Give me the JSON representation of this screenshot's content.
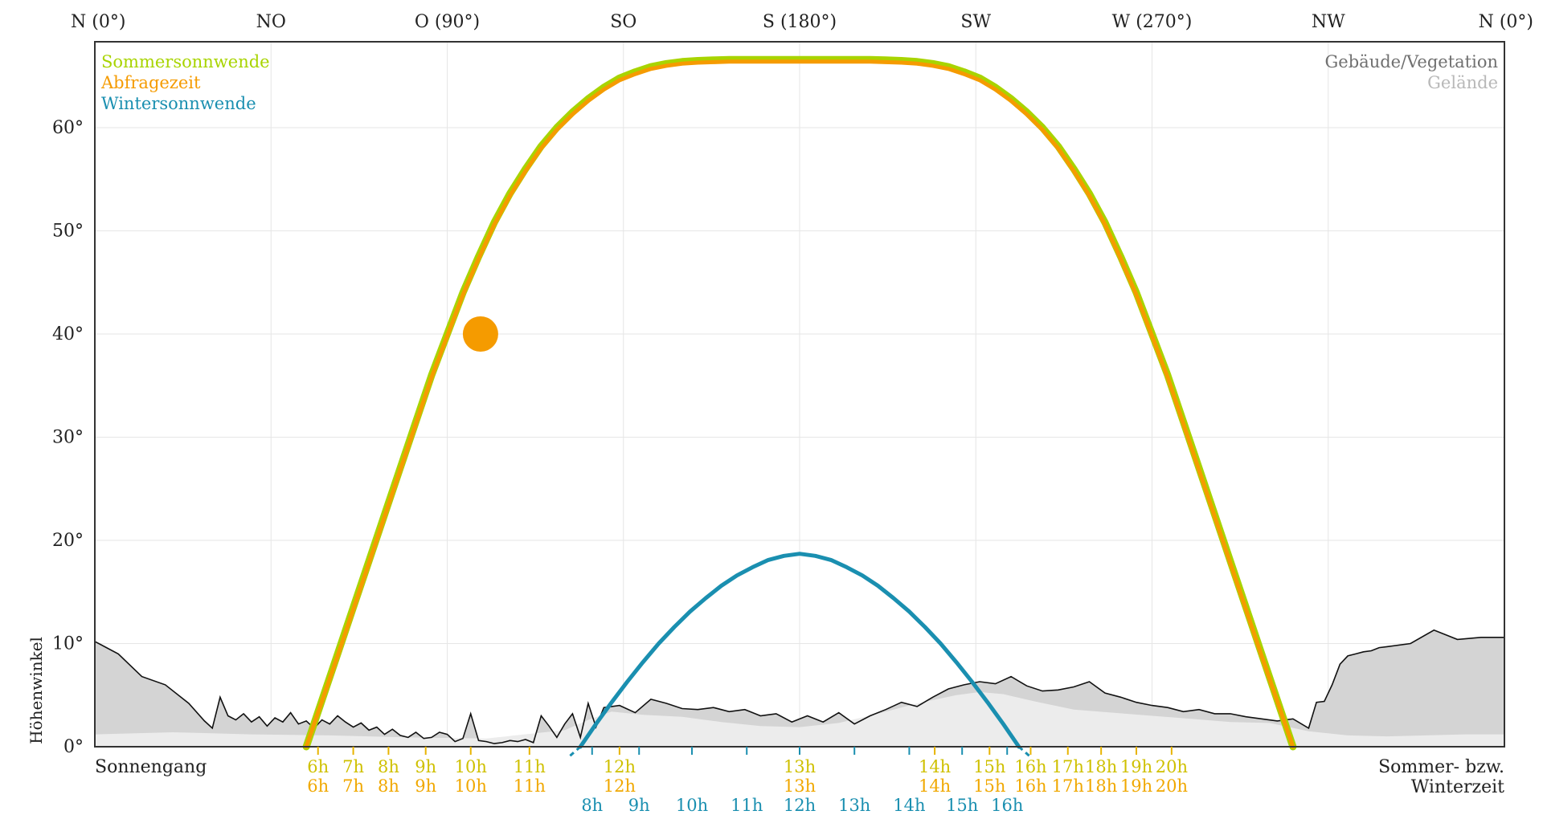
{
  "chart_data": {
    "type": "line",
    "ylabel": "Höhenwinkel",
    "xlim": [
      0,
      360
    ],
    "ylim": [
      0,
      68
    ],
    "grid": true,
    "direction_labels": [
      {
        "label": "N (0°)",
        "az": 0
      },
      {
        "label": "NO",
        "az": 45
      },
      {
        "label": "O (90°)",
        "az": 90
      },
      {
        "label": "SO",
        "az": 135
      },
      {
        "label": "S (180°)",
        "az": 180
      },
      {
        "label": "SW",
        "az": 225
      },
      {
        "label": "W (270°)",
        "az": 270
      },
      {
        "label": "NW",
        "az": 315
      },
      {
        "label": "N (0°)",
        "az": 360
      }
    ],
    "y_ticks": [
      {
        "label": "0°",
        "value": 0
      },
      {
        "label": "10°",
        "value": 10
      },
      {
        "label": "20°",
        "value": 20
      },
      {
        "label": "30°",
        "value": 30
      },
      {
        "label": "40°",
        "value": 40
      },
      {
        "label": "50°",
        "value": 50
      },
      {
        "label": "60°",
        "value": 60
      }
    ],
    "legend_left": [
      {
        "name": "Sommersonnwende",
        "color": "#a8d400"
      },
      {
        "name": "Abfragezeit",
        "color": "#f59b00"
      },
      {
        "name": "Wintersonnwende",
        "color": "#1a8fb0"
      }
    ],
    "legend_right": [
      {
        "name": "Gebäude/Vegetation",
        "color": "#707070"
      },
      {
        "name": "Gelände",
        "color": "#b8b8b8"
      }
    ],
    "series": [
      {
        "name": "Sommersonnwende",
        "color": "#a8d400",
        "x": [
          54,
          58,
          62,
          66,
          70,
          74,
          78,
          82,
          86,
          90,
          94,
          98,
          102,
          106,
          110,
          114,
          118,
          122,
          126,
          130,
          134,
          138,
          142,
          146,
          150,
          154,
          158,
          162,
          166,
          170,
          174,
          178,
          180,
          182,
          186,
          190,
          194,
          198,
          202,
          206,
          210,
          214,
          218,
          222,
          226,
          230,
          234,
          238,
          242,
          246,
          250,
          254,
          258,
          262,
          266,
          270,
          274,
          278,
          282,
          286,
          290,
          294,
          298,
          302,
          306
        ],
        "y": [
          0,
          4.5,
          9,
          13.5,
          18,
          22.5,
          27,
          31.5,
          36,
          40,
          44,
          47.5,
          50.8,
          53.6,
          56.0,
          58.2,
          60.0,
          61.5,
          62.8,
          63.9,
          64.8,
          65.4,
          65.9,
          66.2,
          66.4,
          66.5,
          66.55,
          66.6,
          66.6,
          66.6,
          66.6,
          66.6,
          66.6,
          66.6,
          66.6,
          66.6,
          66.6,
          66.6,
          66.55,
          66.5,
          66.4,
          66.2,
          65.9,
          65.4,
          64.8,
          63.9,
          62.8,
          61.5,
          60.0,
          58.2,
          56.0,
          53.6,
          50.8,
          47.5,
          44,
          40,
          36,
          31.5,
          27,
          22.5,
          18,
          13.5,
          9,
          4.5,
          0
        ]
      },
      {
        "name": "Abfragezeit",
        "color": "#f59b00",
        "x": [
          54,
          58,
          62,
          66,
          70,
          74,
          78,
          82,
          86,
          90,
          94,
          98,
          102,
          106,
          110,
          114,
          118,
          122,
          126,
          130,
          134,
          138,
          142,
          146,
          150,
          154,
          158,
          162,
          166,
          170,
          174,
          178,
          180,
          182,
          186,
          190,
          194,
          198,
          202,
          206,
          210,
          214,
          218,
          222,
          226,
          230,
          234,
          238,
          242,
          246,
          250,
          254,
          258,
          262,
          266,
          270,
          274,
          278,
          282,
          286,
          290,
          294,
          298,
          302,
          306
        ],
        "y": [
          0,
          4.4,
          8.8,
          13.3,
          17.8,
          22.3,
          26.8,
          31.3,
          35.8,
          39.8,
          43.8,
          47.3,
          50.6,
          53.4,
          55.8,
          58.0,
          59.8,
          61.3,
          62.6,
          63.7,
          64.6,
          65.2,
          65.7,
          66.0,
          66.2,
          66.3,
          66.35,
          66.4,
          66.4,
          66.4,
          66.4,
          66.4,
          66.4,
          66.4,
          66.4,
          66.4,
          66.4,
          66.4,
          66.35,
          66.3,
          66.2,
          66.0,
          65.7,
          65.2,
          64.6,
          63.7,
          62.6,
          61.3,
          59.8,
          58.0,
          55.8,
          53.4,
          50.6,
          47.3,
          43.8,
          39.8,
          35.8,
          31.3,
          26.8,
          22.3,
          17.8,
          13.3,
          8.8,
          4.4,
          0
        ]
      },
      {
        "name": "Wintersonnwende",
        "color": "#1a8fb0",
        "x": [
          124,
          128,
          132,
          136,
          140,
          144,
          148,
          152,
          156,
          160,
          164,
          168,
          172,
          176,
          180,
          184,
          188,
          192,
          196,
          200,
          204,
          208,
          212,
          216,
          220,
          224,
          228,
          232,
          236
        ],
        "y": [
          0,
          2.2,
          4.3,
          6.3,
          8.2,
          10.0,
          11.6,
          13.1,
          14.4,
          15.6,
          16.6,
          17.4,
          18.1,
          18.5,
          18.7,
          18.5,
          18.1,
          17.4,
          16.6,
          15.6,
          14.4,
          13.1,
          11.6,
          10.0,
          8.2,
          6.3,
          4.3,
          2.2,
          0
        ]
      }
    ],
    "query_point": {
      "az": 98.5,
      "alt": 40,
      "color": "#f59b00"
    },
    "horizon_buildings": {
      "x": [
        0,
        6,
        12,
        18,
        24,
        28,
        30,
        32,
        34,
        36,
        38,
        40,
        42,
        44,
        46,
        48,
        50,
        52,
        54,
        56,
        58,
        60,
        62,
        64,
        66,
        68,
        70,
        72,
        74,
        76,
        78,
        80,
        82,
        84,
        86,
        88,
        90,
        92,
        94,
        96,
        98,
        100,
        102,
        104,
        106,
        108,
        110,
        112,
        114,
        116,
        118,
        120,
        122,
        124,
        126,
        128,
        130,
        134,
        138,
        142,
        146,
        150,
        154,
        158,
        162,
        166,
        170,
        174,
        178,
        182,
        186,
        190,
        194,
        198,
        202,
        206,
        210,
        214,
        218,
        222,
        226,
        230,
        234,
        238,
        242,
        246,
        250,
        254,
        258,
        262,
        266,
        270,
        274,
        278,
        282,
        286,
        290,
        294,
        298,
        302,
        306,
        310,
        312,
        314,
        316,
        318,
        320,
        322,
        324,
        326,
        328,
        330,
        336,
        342,
        348,
        354,
        360
      ],
      "y": [
        10.2,
        9.0,
        6.8,
        6.0,
        4.2,
        2.5,
        1.8,
        4.8,
        3.0,
        2.6,
        3.2,
        2.4,
        2.9,
        2.0,
        2.8,
        2.4,
        3.3,
        2.2,
        2.5,
        1.8,
        2.6,
        2.2,
        3.0,
        2.4,
        1.9,
        2.3,
        1.6,
        1.9,
        1.2,
        1.7,
        1.1,
        0.9,
        1.4,
        0.8,
        0.9,
        1.4,
        1.2,
        0.5,
        0.8,
        3.2,
        0.6,
        0.5,
        0.3,
        0.4,
        0.6,
        0.5,
        0.7,
        0.4,
        3.0,
        2.0,
        0.9,
        2.2,
        3.2,
        0.9,
        4.2,
        1.9,
        3.8,
        4.0,
        3.3,
        4.6,
        4.2,
        3.7,
        3.6,
        3.8,
        3.4,
        3.6,
        3.0,
        3.2,
        2.4,
        3.0,
        2.4,
        3.3,
        2.2,
        3.0,
        3.6,
        4.3,
        3.9,
        4.8,
        5.6,
        6.0,
        6.3,
        6.1,
        6.8,
        5.9,
        5.4,
        5.5,
        5.8,
        6.3,
        5.2,
        4.8,
        4.3,
        4.0,
        3.8,
        3.4,
        3.6,
        3.2,
        3.2,
        2.9,
        2.7,
        2.5,
        2.7,
        1.8,
        4.3,
        4.4,
        6.0,
        8.0,
        8.8,
        9.0,
        9.2,
        9.3,
        9.6,
        9.7,
        10.0,
        11.3,
        10.4,
        10.6,
        10.6
      ]
    },
    "horizon_terrain": {
      "x": [
        0,
        20,
        40,
        60,
        80,
        100,
        120,
        126,
        132,
        140,
        150,
        160,
        170,
        180,
        190,
        200,
        210,
        220,
        226,
        232,
        240,
        250,
        260,
        270,
        280,
        290,
        300,
        310,
        320,
        330,
        340,
        350,
        360
      ],
      "y": [
        1.2,
        1.4,
        1.2,
        1.1,
        0.9,
        0.8,
        1.6,
        2.6,
        3.4,
        3.1,
        2.9,
        2.4,
        2.0,
        1.9,
        2.3,
        3.2,
        4.2,
        5.0,
        5.3,
        5.1,
        4.4,
        3.6,
        3.3,
        3.0,
        2.7,
        2.4,
        2.3,
        1.5,
        1.1,
        1.0,
        1.1,
        1.2,
        1.2
      ]
    },
    "summer_hour_ticks": [
      {
        "az": 57,
        "label": "6h"
      },
      {
        "az": 66,
        "label": "7h"
      },
      {
        "az": 75,
        "label": "8h"
      },
      {
        "az": 84.5,
        "label": "9h"
      },
      {
        "az": 96,
        "label": "10h"
      },
      {
        "az": 111,
        "label": "11h"
      },
      {
        "az": 134,
        "label": "12h"
      },
      {
        "az": 180,
        "label": "13h"
      },
      {
        "az": 214.5,
        "label": "14h"
      },
      {
        "az": 228.5,
        "label": "15h"
      },
      {
        "az": 239,
        "label": "16h"
      },
      {
        "az": 248.5,
        "label": "17h"
      },
      {
        "az": 257,
        "label": "18h"
      },
      {
        "az": 266,
        "label": "19h"
      },
      {
        "az": 275,
        "label": "20h"
      }
    ],
    "summer_time_labels": [
      "6h",
      "7h",
      "8h",
      "9h",
      "10h",
      "11h",
      "12h",
      "13h",
      "14h",
      "15h",
      "16h",
      "17h",
      "18h",
      "19h",
      "20h"
    ],
    "winter_hour_ticks": [
      {
        "az": 127,
        "label": "8h"
      },
      {
        "az": 139,
        "label": "9h"
      },
      {
        "az": 152.5,
        "label": "10h"
      },
      {
        "az": 166.5,
        "label": "11h"
      },
      {
        "az": 180,
        "label": "12h"
      },
      {
        "az": 194,
        "label": "13h"
      },
      {
        "az": 208,
        "label": "14h"
      },
      {
        "az": 221.5,
        "label": "15h"
      },
      {
        "az": 233,
        "label": "16h"
      }
    ],
    "left_caption": "Sonnengang",
    "right_caption_line1": "Sommer- bzw.",
    "right_caption_line2": "Winterzeit"
  }
}
